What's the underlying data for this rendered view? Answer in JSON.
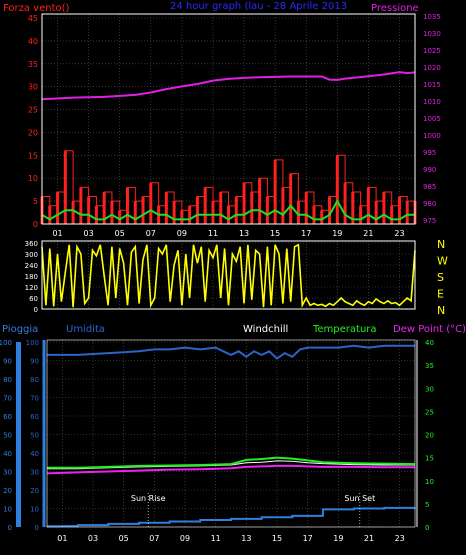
{
  "colors": {
    "background": "#000000",
    "grid": "#5a5a5a",
    "wind": "#ff2020",
    "wind_speed": "#22dd22",
    "pressure": "#e020e0",
    "direction": "#ffff00",
    "blue": "#2f7fe0",
    "humidity": "#2e63c8",
    "windchill": "#ffffff",
    "temperature": "#22ee22",
    "dewpoint": "#ee22ee",
    "title": "#2a2aff"
  },
  "chart_data": [
    {
      "type": "line",
      "title": "24 hour graph (lau - 28 Aprile 2013",
      "left_label": "Forza vento()",
      "right_label": "Pressione",
      "x_ticks": [
        "01",
        "03",
        "05",
        "07",
        "09",
        "11",
        "13",
        "15",
        "17",
        "19",
        "21",
        "23"
      ],
      "y_left_ticks": [
        "0",
        "5",
        "10",
        "15",
        "20",
        "25",
        "30",
        "35",
        "40",
        "45"
      ],
      "y_left_range": [
        0,
        45
      ],
      "y_right_ticks": [
        "975",
        "980",
        "985",
        "990",
        "995",
        "1000",
        "1005",
        "1010",
        "1015",
        "1020",
        "1025",
        "1030",
        "1035"
      ],
      "y_right_range": [
        975,
        1035
      ],
      "series": [
        {
          "key": "gust",
          "x": [
            0,
            0.5,
            1,
            1.5,
            2,
            2.5,
            3,
            3.5,
            4,
            4.5,
            5,
            5.5,
            6,
            6.5,
            7,
            7.5,
            8,
            8.5,
            9,
            9.5,
            10,
            10.5,
            11,
            11.5,
            12,
            12.5,
            13,
            13.5,
            14,
            14.5,
            15,
            15.5,
            16,
            16.5,
            17,
            17.5,
            18,
            18.5,
            19,
            19.5,
            20,
            20.5,
            21,
            21.5,
            22,
            22.5,
            23,
            23.5,
            24
          ],
          "y": [
            6,
            4,
            7,
            16,
            5,
            8,
            6,
            4,
            7,
            5,
            3,
            8,
            5,
            6,
            9,
            4,
            7,
            5,
            3,
            4,
            6,
            8,
            5,
            7,
            4,
            6,
            9,
            7,
            10,
            6,
            14,
            8,
            11,
            5,
            7,
            4,
            3,
            6,
            15,
            9,
            7,
            4,
            8,
            5,
            7,
            4,
            6,
            5,
            5
          ]
        },
        {
          "key": "wind_speed",
          "x": [
            0,
            0.5,
            1,
            1.5,
            2,
            2.5,
            3,
            3.5,
            4,
            4.5,
            5,
            5.5,
            6,
            6.5,
            7,
            7.5,
            8,
            8.5,
            9,
            9.5,
            10,
            10.5,
            11,
            11.5,
            12,
            12.5,
            13,
            13.5,
            14,
            14.5,
            15,
            15.5,
            16,
            16.5,
            17,
            17.5,
            18,
            18.5,
            19,
            19.5,
            20,
            20.5,
            21,
            21.5,
            22,
            22.5,
            23,
            23.5,
            24
          ],
          "y": [
            2,
            1,
            2,
            3,
            3,
            2,
            2,
            1,
            1,
            2,
            1,
            2,
            1,
            2,
            3,
            2,
            2,
            1,
            1,
            1,
            2,
            2,
            2,
            2,
            1,
            2,
            2,
            3,
            3,
            2,
            3,
            2,
            4,
            2,
            2,
            1,
            1,
            2,
            5,
            2,
            1,
            1,
            2,
            1,
            2,
            1,
            1,
            2,
            2
          ]
        },
        {
          "key": "pressure",
          "x": [
            0,
            2,
            4,
            6,
            7,
            8,
            9,
            10,
            11,
            12,
            13,
            14,
            15,
            16,
            17,
            18,
            18.5,
            19,
            19.5,
            20,
            21,
            22,
            23,
            23.5,
            24
          ],
          "y": [
            1010.5,
            1011,
            1011.2,
            1011.8,
            1012.5,
            1013.5,
            1014.3,
            1015,
            1016,
            1016.5,
            1016.8,
            1017,
            1017.1,
            1017.2,
            1017.2,
            1017.2,
            1016.3,
            1016.2,
            1016.6,
            1016.8,
            1017.3,
            1017.8,
            1018.5,
            1018.2,
            1018.4
          ]
        }
      ]
    },
    {
      "type": "line",
      "y_ticks": [
        "0",
        "60",
        "120",
        "180",
        "240",
        "300",
        "360"
      ],
      "y_range": [
        0,
        360
      ],
      "direction_labels": [
        "N",
        "W",
        "S",
        "E",
        "N"
      ],
      "series": [
        {
          "key": "direction",
          "x": [
            0,
            0.25,
            0.5,
            0.75,
            1,
            1.25,
            1.5,
            1.75,
            2,
            2.25,
            2.5,
            2.75,
            3,
            3.25,
            3.5,
            3.75,
            4,
            4.25,
            4.5,
            4.75,
            5,
            5.25,
            5.5,
            5.75,
            6,
            6.25,
            6.5,
            6.75,
            7,
            7.25,
            7.5,
            7.75,
            8,
            8.25,
            8.5,
            8.75,
            9,
            9.25,
            9.5,
            9.75,
            10,
            10.25,
            10.5,
            10.75,
            11,
            11.25,
            11.5,
            11.75,
            12,
            12.25,
            12.5,
            12.75,
            13,
            13.25,
            13.5,
            13.75,
            14,
            14.25,
            14.5,
            14.75,
            15,
            15.25,
            15.5,
            15.75,
            16,
            16.25,
            16.5,
            16.75,
            17,
            17.25,
            17.5,
            17.75,
            18,
            18.25,
            18.5,
            18.75,
            19,
            19.25,
            19.5,
            19.75,
            20,
            20.25,
            20.5,
            20.75,
            21,
            21.25,
            21.5,
            21.75,
            22,
            22.25,
            22.5,
            22.75,
            23,
            23.25,
            23.5,
            23.75,
            24
          ],
          "y": [
            340,
            20,
            330,
            15,
            300,
            40,
            200,
            350,
            10,
            340,
            300,
            30,
            60,
            320,
            290,
            350,
            180,
            20,
            340,
            60,
            330,
            250,
            20,
            310,
            340,
            30,
            270,
            350,
            20,
            60,
            330,
            300,
            350,
            40,
            240,
            320,
            20,
            300,
            60,
            350,
            250,
            340,
            40,
            320,
            280,
            350,
            60,
            330,
            20,
            300,
            260,
            340,
            30,
            350,
            50,
            320,
            300,
            10,
            340,
            20,
            350,
            300,
            30,
            330,
            40,
            340,
            350,
            20,
            60,
            20,
            30,
            20,
            25,
            15,
            30,
            20,
            40,
            60,
            40,
            30,
            20,
            45,
            30,
            20,
            40,
            30,
            55,
            40,
            30,
            45,
            30,
            35,
            20,
            40,
            60,
            45,
            320
          ]
        }
      ]
    },
    {
      "type": "line",
      "header_labels": [
        "Pioggia",
        "Umidita",
        "Windchill",
        "Temperatura",
        "Dew Point (°C)"
      ],
      "y_left_ticks": [
        "0",
        "10",
        "20",
        "30",
        "40",
        "50",
        "60",
        "70",
        "80",
        "90",
        "100"
      ],
      "y_left_range": [
        0,
        100
      ],
      "y_right_ticks": [
        "0",
        "5",
        "10",
        "15",
        "20",
        "25",
        "30",
        "35",
        "40"
      ],
      "y_right_range": [
        0,
        40
      ],
      "annotations": [
        {
          "text": "Sun Rise",
          "x": 6.6
        },
        {
          "text": "Sun Set",
          "x": 20.4
        }
      ],
      "series": [
        {
          "key": "humidity",
          "x": [
            0,
            2,
            4,
            6,
            7,
            8,
            9,
            10,
            11,
            11.5,
            12,
            12.5,
            13,
            13.5,
            14,
            14.5,
            15,
            15.5,
            16,
            16.5,
            17,
            18,
            19,
            20,
            21,
            22,
            23,
            24
          ],
          "y": [
            93,
            93,
            94,
            95,
            96,
            96,
            97,
            96,
            97,
            95,
            93,
            95,
            92,
            95,
            93,
            95,
            91,
            94,
            92,
            96,
            97,
            97,
            97,
            98,
            97,
            98,
            98,
            98
          ]
        },
        {
          "key": "rain",
          "x": [
            0,
            1,
            2,
            4,
            6,
            8,
            10,
            12,
            14,
            16,
            17.9,
            18,
            20,
            22,
            24
          ],
          "y": [
            0.4,
            0.5,
            1,
            1.7,
            2.3,
            3,
            3.8,
            4.4,
            5.3,
            6,
            6.1,
            9.5,
            10,
            10.3,
            10.4
          ]
        },
        {
          "key": "windchill",
          "x": [
            0,
            2,
            4,
            6,
            8,
            10,
            12,
            13,
            14,
            15,
            16,
            17,
            18,
            20,
            22,
            24
          ],
          "y": [
            12.6,
            12.6,
            12.8,
            13,
            13.1,
            13.2,
            13.4,
            13.9,
            14,
            14.3,
            14.2,
            13.9,
            13.7,
            13.5,
            13.4,
            13.4
          ]
        },
        {
          "key": "temperature",
          "x": [
            0,
            2,
            4,
            6,
            8,
            10,
            12,
            13,
            14,
            15,
            16,
            17,
            18,
            20,
            22,
            24
          ],
          "y": [
            12.8,
            12.8,
            13,
            13.2,
            13.3,
            13.4,
            13.6,
            14.5,
            14.7,
            15,
            14.8,
            14.4,
            14,
            13.8,
            13.7,
            13.6
          ]
        },
        {
          "key": "dewpoint",
          "x": [
            0,
            2,
            4,
            6,
            8,
            10,
            12,
            13,
            14,
            15,
            16,
            17,
            18,
            20,
            22,
            24
          ],
          "y": [
            11.6,
            11.8,
            12,
            12.2,
            12.4,
            12.5,
            12.7,
            13,
            13.1,
            13.2,
            13.2,
            13.1,
            13,
            13,
            12.9,
            12.9
          ]
        }
      ]
    }
  ]
}
